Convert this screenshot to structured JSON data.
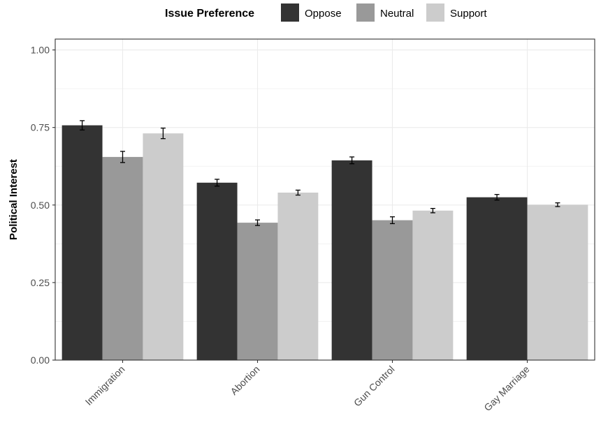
{
  "chart_data": {
    "type": "bar",
    "title": "",
    "xlabel": "",
    "ylabel": "Political Interest",
    "ylim": [
      0,
      1.035
    ],
    "yticks": [
      "0.00",
      "0.25",
      "0.50",
      "0.75",
      "1.00"
    ],
    "ytick_values": [
      0,
      0.25,
      0.5,
      0.75,
      1.0
    ],
    "categories": [
      "Immigration",
      "Abortion",
      "Gun Control",
      "Gay Marriage"
    ],
    "legend": {
      "title": "Issue Preference",
      "position": "top"
    },
    "grid": true,
    "series": [
      {
        "name": "Oppose",
        "color": "#333333",
        "values": [
          0.757,
          0.572,
          0.644,
          0.525
        ],
        "err": [
          0.015,
          0.011,
          0.011,
          0.009
        ]
      },
      {
        "name": "Neutral",
        "color": "#999999",
        "values": [
          0.655,
          0.443,
          0.451,
          null
        ],
        "err": [
          0.018,
          0.009,
          0.011,
          null
        ]
      },
      {
        "name": "Support",
        "color": "#cccccc",
        "values": [
          0.731,
          0.54,
          0.482,
          0.501
        ],
        "err": [
          0.017,
          0.008,
          0.007,
          0.006
        ]
      }
    ]
  }
}
